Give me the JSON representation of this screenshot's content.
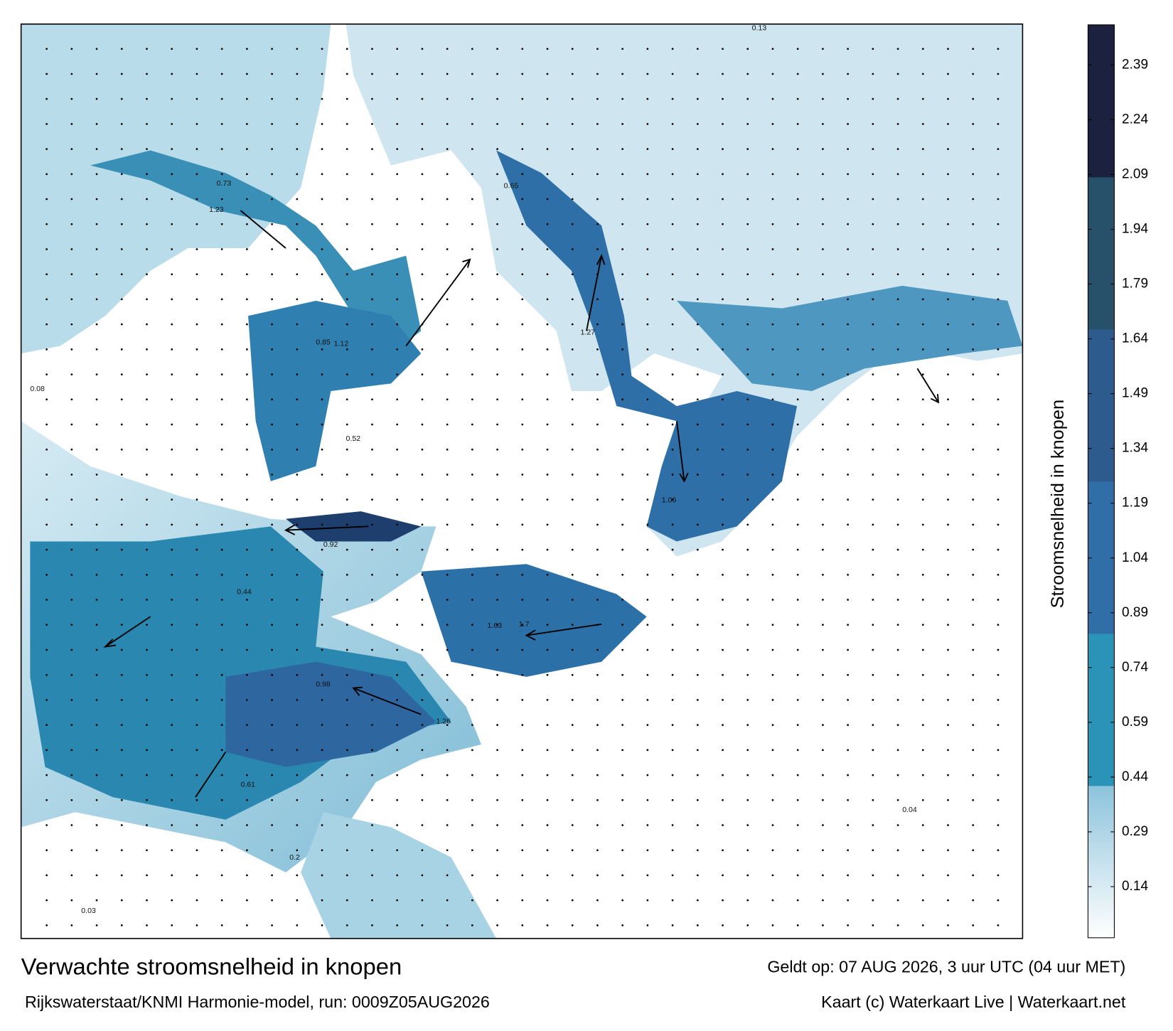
{
  "title": "Verwachte stroomsnelheid in knopen",
  "subtitle": "Rijkswaterstaat/KNMI Harmonie-model, run: 0009Z05AUG2026",
  "valid_time": "Geldt op: 07 AUG 2026, 3 uur UTC (04 uur MET)",
  "credit": "Kaart (c) Waterkaart Live | Waterkaart.net",
  "colorbar": {
    "label": "Stroomsnelheid in knopen",
    "lim": [
      0,
      2.5
    ],
    "ticks": [
      0.14,
      0.29,
      0.44,
      0.59,
      0.74,
      0.89,
      1.04,
      1.19,
      1.34,
      1.49,
      1.64,
      1.79,
      1.94,
      2.09,
      2.24,
      2.39
    ],
    "colors": [
      "#8cc3dc",
      "#2b93b8",
      "#2f6ea6",
      "#2d5b8e",
      "#27516a",
      "#1c2140"
    ]
  },
  "map_labels": [
    "1.23",
    "0.85",
    "1.12",
    "0.92",
    "1.26",
    "1.63",
    "1.7",
    "0.73",
    "0.65",
    "0.52",
    "0.44",
    "0.2",
    "0.13",
    "0.08",
    "0.04",
    "0.03",
    "1.06",
    "0.98",
    "1.27",
    "0.61"
  ]
}
